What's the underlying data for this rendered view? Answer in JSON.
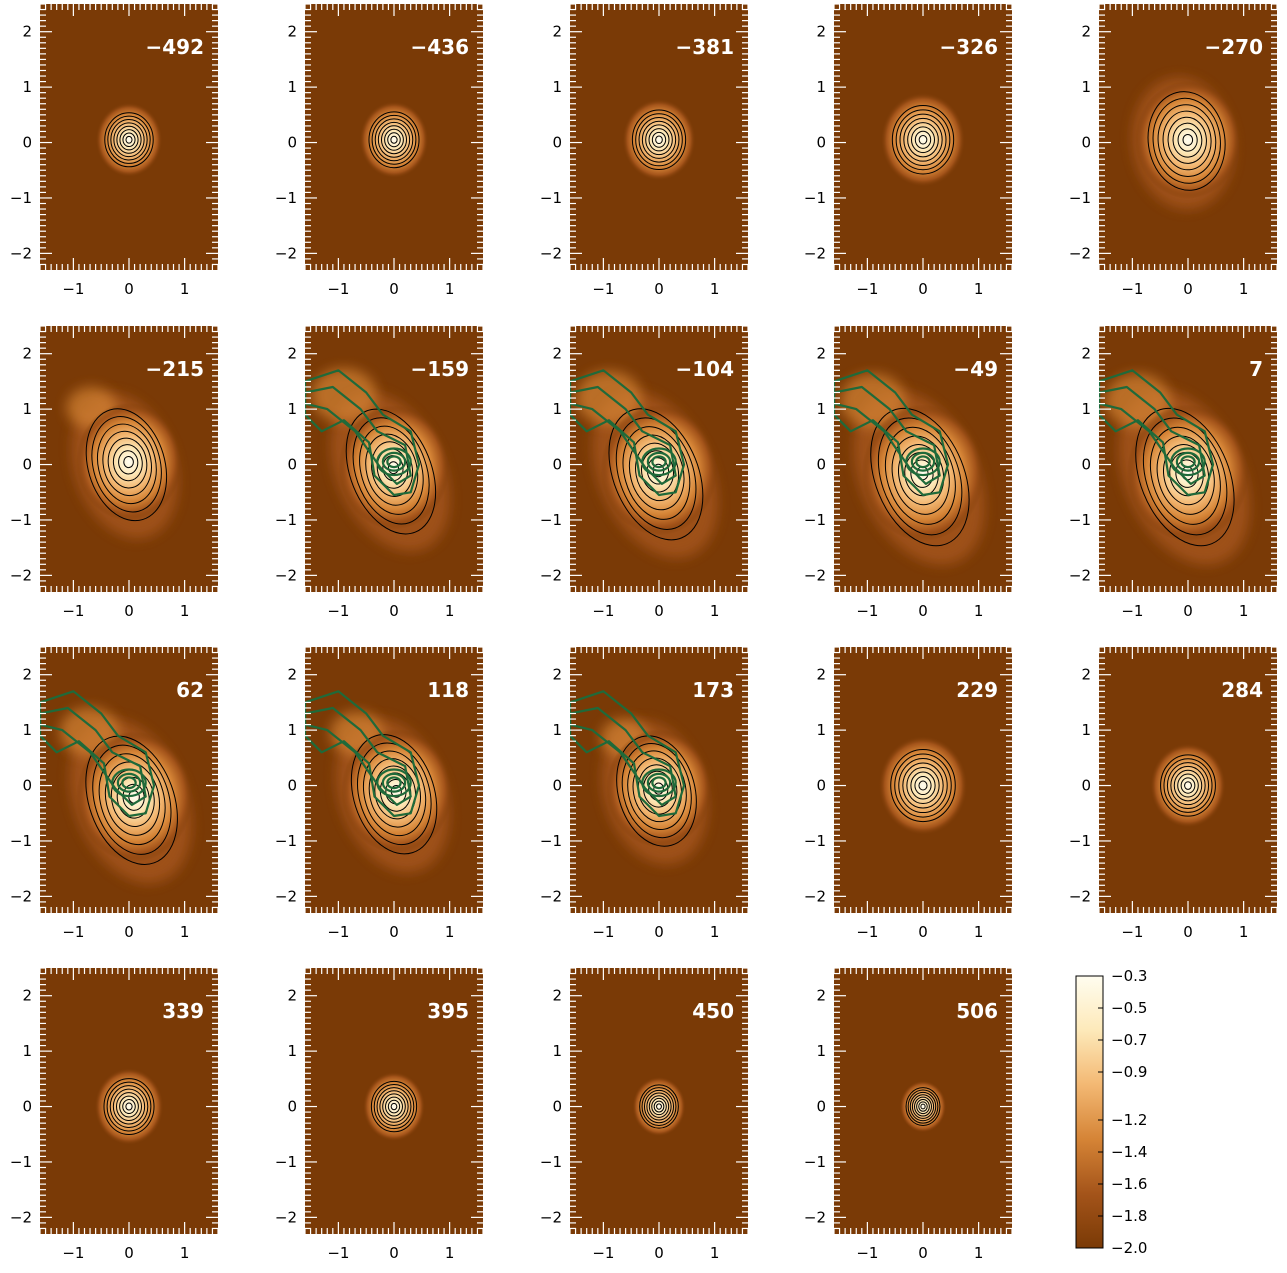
{
  "chart_data": {
    "type": "heatmap",
    "xlabel": "",
    "ylabel": "",
    "xlim": [
      -1.6,
      1.6
    ],
    "ylim": [
      -2.3,
      2.5
    ],
    "x_ticks": [
      -1,
      0,
      1
    ],
    "y_ticks": [
      -2,
      -1,
      0,
      1,
      2
    ],
    "grid": false,
    "panels": [
      {
        "label": "-492",
        "green_contours": false
      },
      {
        "label": "-436",
        "green_contours": false
      },
      {
        "label": "-381",
        "green_contours": false
      },
      {
        "label": "-326",
        "green_contours": false
      },
      {
        "label": "-270",
        "green_contours": false
      },
      {
        "label": "-215",
        "green_contours": false
      },
      {
        "label": "-159",
        "green_contours": true
      },
      {
        "label": "-104",
        "green_contours": true
      },
      {
        "label": "-49",
        "green_contours": true
      },
      {
        "label": "7",
        "green_contours": true
      },
      {
        "label": "62",
        "green_contours": true
      },
      {
        "label": "118",
        "green_contours": true
      },
      {
        "label": "173",
        "green_contours": true
      },
      {
        "label": "229",
        "green_contours": false
      },
      {
        "label": "284",
        "green_contours": false
      },
      {
        "label": "339",
        "green_contours": false
      },
      {
        "label": "395",
        "green_contours": false
      },
      {
        "label": "450",
        "green_contours": false
      },
      {
        "label": "506",
        "green_contours": false
      }
    ],
    "colorbar": {
      "ticks": [
        -0.3,
        -0.5,
        -0.7,
        -0.9,
        -1.2,
        -1.4,
        -1.6,
        -1.8,
        -2.0
      ],
      "range": [
        -2.0,
        -0.3
      ],
      "colors_low_to_high": [
        "#7a3a06",
        "#a4541a",
        "#d58436",
        "#f3b873",
        "#fde9b9",
        "#fffdf0"
      ]
    },
    "colors": {
      "background": "#7a3a06",
      "black_contour": "#000000",
      "green_contour": "#1f6a3a",
      "panel_label": "#ffffff"
    }
  }
}
